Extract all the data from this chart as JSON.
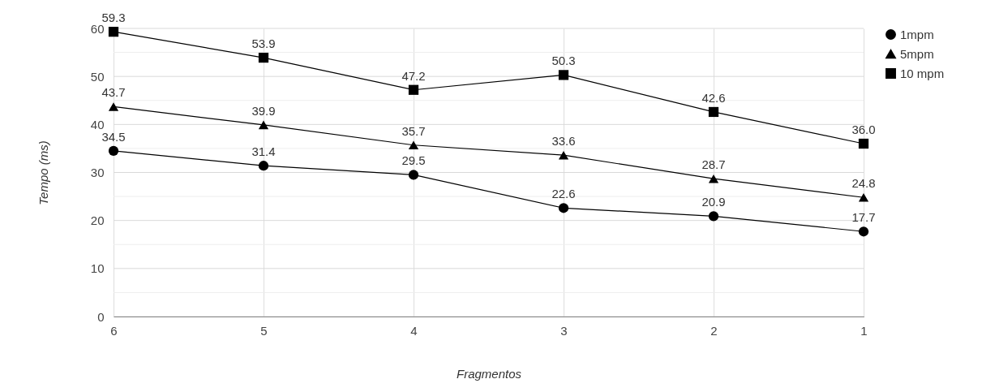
{
  "chart_data": {
    "type": "line",
    "xlabel": "Fragmentos",
    "ylabel": "Tempo (ms)",
    "categories": [
      "6",
      "5",
      "4",
      "3",
      "2",
      "1"
    ],
    "series": [
      {
        "name": "1mpm",
        "color": "#000000",
        "marker": "circle",
        "values": [
          34.5,
          31.4,
          29.5,
          22.6,
          20.9,
          17.7
        ],
        "value_labels": [
          "34.5",
          "31.4",
          "29.5",
          "22.6",
          "20.9",
          "17.7"
        ]
      },
      {
        "name": "5mpm",
        "color": "#000000",
        "marker": "triangle",
        "values": [
          43.7,
          39.9,
          35.7,
          33.6,
          28.7,
          24.8
        ],
        "value_labels": [
          "43.7",
          "39.9",
          "35.7",
          "33.6",
          "28.7",
          "24.8"
        ]
      },
      {
        "name": "10 mpm",
        "color": "#000000",
        "marker": "square",
        "values": [
          59.3,
          53.9,
          47.2,
          50.3,
          42.6,
          36.0
        ],
        "value_labels": [
          "59.3",
          "53.9",
          "47.2",
          "50.3",
          "42.6",
          "36.0"
        ]
      }
    ],
    "ylim": [
      0,
      60
    ],
    "yticks": [
      0,
      {
        "value": 5,
        "label": null
      },
      10,
      {
        "value": 15,
        "label": null
      },
      20,
      {
        "value": 25,
        "label": null
      },
      30,
      {
        "value": 35,
        "label": null
      },
      40,
      {
        "value": 45,
        "label": null
      },
      50,
      {
        "value": 55,
        "label": null
      },
      60
    ],
    "grid": true,
    "legend": "top right",
    "line_style": "solid"
  }
}
